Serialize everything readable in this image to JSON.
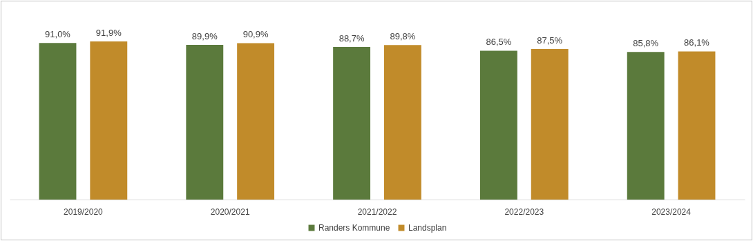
{
  "chart_data": {
    "type": "bar",
    "categories": [
      "2019/2020",
      "2020/2021",
      "2021/2022",
      "2022/2023",
      "2023/2024"
    ],
    "series": [
      {
        "name": "Randers Kommune",
        "color": "#5b7a3c",
        "values": [
          91.0,
          89.9,
          88.7,
          86.5,
          85.8
        ],
        "value_labels": [
          "91,0%",
          "89,9%",
          "88,7%",
          "86,5%",
          "85,8%"
        ]
      },
      {
        "name": "Landsplan",
        "color": "#c18b2a",
        "values": [
          91.9,
          90.9,
          89.8,
          87.5,
          86.1
        ],
        "value_labels": [
          "91,9%",
          "90,9%",
          "89,8%",
          "87,5%",
          "86,1%"
        ]
      }
    ],
    "tick_labels": "x",
    "legend": "bottom"
  }
}
